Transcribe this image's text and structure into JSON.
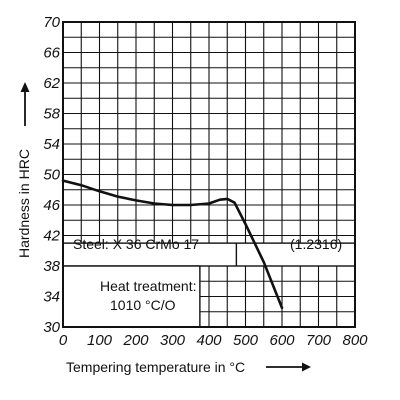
{
  "chart_data": {
    "type": "line",
    "xlabel": "Tempering temperature in °C",
    "ylabel": "Hardness in HRC",
    "xlim": [
      0,
      800
    ],
    "ylim": [
      30,
      70
    ],
    "x_ticks": [
      0,
      100,
      200,
      300,
      400,
      500,
      600,
      700,
      800
    ],
    "y_ticks": [
      30,
      34,
      38,
      42,
      46,
      50,
      54,
      58,
      62,
      66,
      70
    ],
    "grid": true,
    "grid_x_step": 50,
    "grid_y_step": 2,
    "series": [
      {
        "x": [
          0,
          50,
          100,
          150,
          200,
          250,
          300,
          350,
          400,
          430,
          450,
          470,
          500,
          550,
          600
        ],
        "y": [
          49.2,
          48.6,
          47.8,
          47.1,
          46.6,
          46.2,
          46.0,
          46.0,
          46.2,
          46.7,
          46.8,
          46.3,
          43.5,
          38.5,
          32.5
        ]
      }
    ],
    "annotations": {
      "steel": "Steel: X 36 CrMo 17",
      "number": "(1.2316)",
      "heat_title": "Heat treatment:",
      "heat_value": "1010 °C/O"
    },
    "arrow_icon": "arrow-icon"
  }
}
